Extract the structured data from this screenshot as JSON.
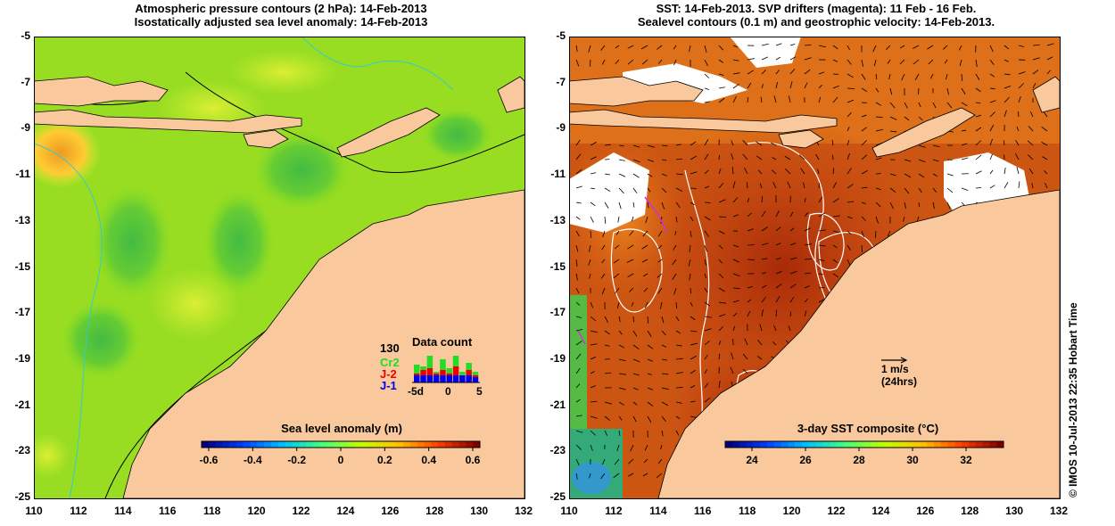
{
  "left_panel": {
    "title_line1": "Atmospheric pressure contours (2 hPa): 14-Feb-2013",
    "title_line2": "Isostatically adjusted sea level anomaly: 14-Feb-2013",
    "colorbar_title": "Sea level anomaly (m)",
    "colorbar_ticks": [
      "-0.6",
      "-0.4",
      "-0.2",
      "0",
      "0.2",
      "0.4",
      "0.6"
    ],
    "data_count": {
      "title": "Data count",
      "max_value": "130",
      "satellites": [
        {
          "name": "Cr2",
          "color": "#22dd22"
        },
        {
          "name": "J-2",
          "color": "#ee0000"
        },
        {
          "name": "J-1",
          "color": "#0000ee"
        }
      ],
      "axis_labels": [
        "-5d",
        "0",
        "5"
      ]
    }
  },
  "right_panel": {
    "title_line1": "SST: 14-Feb-2013. SVP drifters (magenta): 11 Feb - 16 Feb.",
    "title_line2": "Sealevel contours (0.1 m) and geostrophic velocity: 14-Feb-2013.",
    "colorbar_title": "3-day SST composite (°C)",
    "colorbar_ticks": [
      "24",
      "26",
      "28",
      "30",
      "32"
    ],
    "scale_arrow_label1": "1 m/s",
    "scale_arrow_label2": "(24hrs)"
  },
  "axes": {
    "lat_ticks": [
      "-5",
      "-7",
      "-9",
      "-11",
      "-13",
      "-15",
      "-17",
      "-19",
      "-21",
      "-23",
      "-25"
    ],
    "lon_ticks": [
      "110",
      "112",
      "114",
      "116",
      "118",
      "120",
      "122",
      "124",
      "126",
      "128",
      "130",
      "132"
    ]
  },
  "credit": "© IMOS 10-Jul-2013 22:35 Hobart Time",
  "colors": {
    "land": "#f9c89c",
    "sla_base": "#99dd22",
    "sst_base": "#c05010"
  }
}
